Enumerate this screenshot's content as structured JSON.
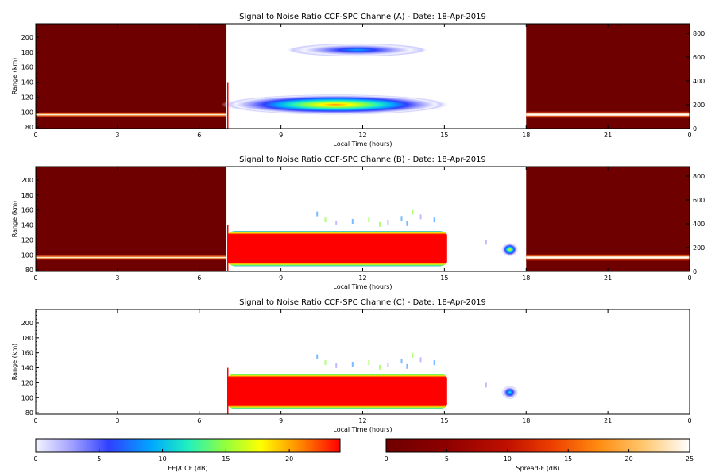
{
  "chart_data": {
    "type": "heatmap",
    "panels": [
      {
        "title": "Signal to Noise Ratio CCF-SPC Channel(A) - Date: 18-Apr-2019",
        "xlabel": "Local Time (hours)",
        "ylabel": "Range (km)",
        "xlim": [
          0,
          24
        ],
        "xticks": [
          "0",
          "3",
          "6",
          "9",
          "12",
          "15",
          "18",
          "21",
          "0"
        ],
        "ylim": [
          78,
          218
        ],
        "yticks": [
          "80",
          "100",
          "120",
          "140",
          "160",
          "180",
          "200"
        ],
        "y2ticks": [
          "0",
          "200",
          "400",
          "600",
          "800"
        ],
        "spreadf_blocks": [
          {
            "t_start": 0,
            "t_end": 7,
            "layer_range_km": [
              93,
              100
            ]
          },
          {
            "t_start": 18,
            "t_end": 24,
            "layer_range_km": [
              92,
              101
            ]
          }
        ],
        "eej_echoes": [
          {
            "t_center": 11.8,
            "range_center_km": 183,
            "half_width_h": 2.6,
            "half_height_km": 9,
            "peak_db": 10
          },
          {
            "t_center": 11.0,
            "range_center_km": 110,
            "half_width_h": 4.2,
            "half_height_km": 14,
            "peak_db": 23
          }
        ]
      },
      {
        "title": "Signal to Noise Ratio CCF-SPC Channel(B) - Date: 18-Apr-2019",
        "xlabel": "Local Time (hours)",
        "ylabel": "Range (km)",
        "xlim": [
          0,
          24
        ],
        "xticks": [
          "0",
          "3",
          "6",
          "9",
          "12",
          "15",
          "18",
          "21",
          "0"
        ],
        "ylim": [
          78,
          218
        ],
        "yticks": [
          "80",
          "100",
          "120",
          "140",
          "160",
          "180",
          "200"
        ],
        "y2ticks": [
          "0",
          "200",
          "400",
          "600",
          "800"
        ],
        "spreadf_blocks": [
          {
            "t_start": 0,
            "t_end": 7,
            "layer_range_km": [
              93,
              100
            ]
          },
          {
            "t_start": 18,
            "t_end": 24,
            "layer_range_km": [
              92,
              101
            ]
          }
        ],
        "eej_echoes": [
          {
            "t_start": 7.05,
            "t_end": 15.1,
            "range_km": [
              87,
              130
            ],
            "peak_db": 25
          },
          {
            "t_center": 17.4,
            "range_center_km": 107,
            "half_width_h": 0.3,
            "half_height_km": 9,
            "peak_db": 18
          }
        ]
      },
      {
        "title": "Signal to Noise Ratio CCF-SPC Channel(C) - Date: 18-Apr-2019",
        "xlabel": "Local Time (hours)",
        "ylabel": "Range (km)",
        "xlim": [
          0,
          24
        ],
        "xticks": [
          "0",
          "3",
          "6",
          "9",
          "12",
          "15",
          "18",
          "21",
          "0"
        ],
        "ylim": [
          78,
          218
        ],
        "yticks": [
          "80",
          "100",
          "120",
          "140",
          "160",
          "180",
          "200"
        ],
        "y2ticks": [],
        "spreadf_blocks": [],
        "eej_echoes": [
          {
            "t_start": 7.05,
            "t_end": 15.1,
            "range_km": [
              87,
              130
            ],
            "peak_db": 25
          },
          {
            "t_center": 17.4,
            "range_center_km": 107,
            "half_width_h": 0.3,
            "half_height_km": 9,
            "peak_db": 12
          }
        ]
      }
    ],
    "colorbars": [
      {
        "label": "EEJ/CCF (dB)",
        "range": [
          0,
          24
        ],
        "ticks": [
          "0",
          "5",
          "10",
          "15",
          "20"
        ],
        "colormap": "rainbow"
      },
      {
        "label": "Spread-F (dB)",
        "range": [
          0,
          25
        ],
        "ticks": [
          "0",
          "5",
          "10",
          "15",
          "20",
          "25"
        ],
        "colormap": "heat"
      }
    ],
    "colors": {
      "spreadf_background": "#6e0000",
      "spreadf_layer": "#ffd060",
      "eej_saturated": "#ff0000"
    }
  }
}
